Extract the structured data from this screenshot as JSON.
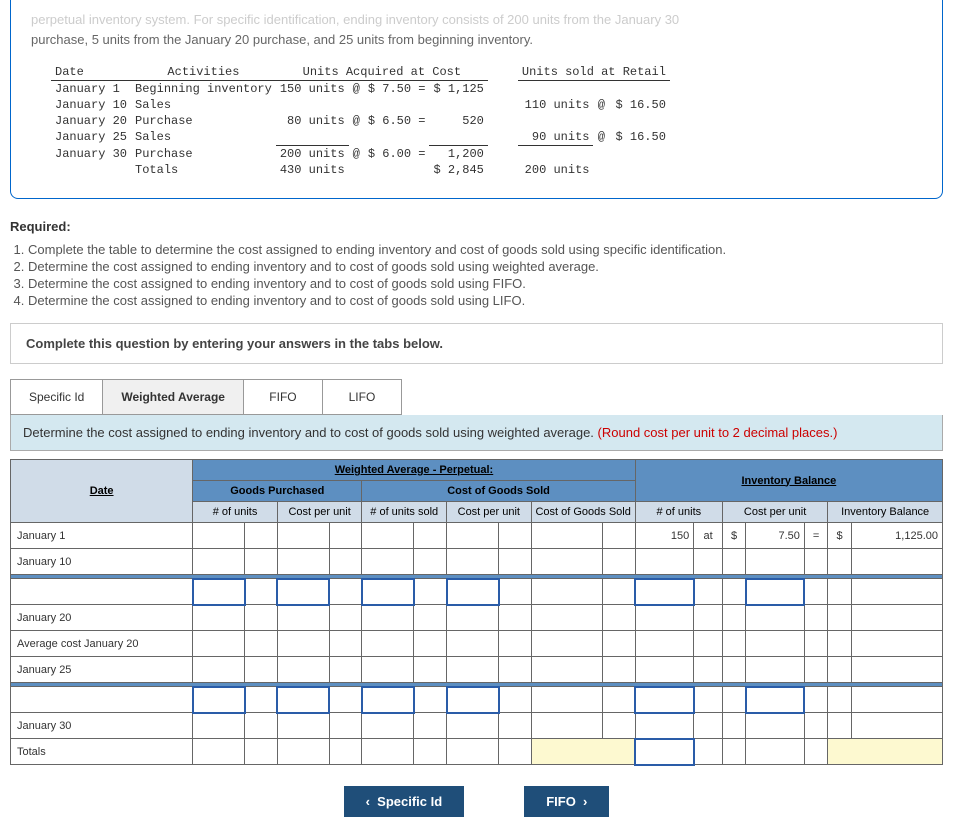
{
  "intro": {
    "faded": "perpetual inventory system. For specific identification, ending inventory consists of 200 units from the January 30",
    "line2": "purchase, 5 units from the January 20 purchase, and 25 units from beginning inventory."
  },
  "info": {
    "headers": {
      "date": "Date",
      "activities": "Activities",
      "acq": "Units Acquired at Cost",
      "sold": "Units sold at Retail"
    },
    "rows": [
      {
        "date": "January 1",
        "act": "Beginning inventory",
        "units": "150 units",
        "at": "@",
        "price": "$ 7.50 =",
        "cost": "$ 1,125",
        "sunits": "",
        "sat": "",
        "sprice": ""
      },
      {
        "date": "January 10",
        "act": "Sales",
        "units": "",
        "at": "",
        "price": "",
        "cost": "",
        "sunits": "110 units",
        "sat": "@",
        "sprice": "$ 16.50"
      },
      {
        "date": "January 20",
        "act": "Purchase",
        "units": "80 units",
        "at": "@",
        "price": "$ 6.50 =",
        "cost": "520",
        "sunits": "",
        "sat": "",
        "sprice": ""
      },
      {
        "date": "January 25",
        "act": "Sales",
        "units": "",
        "at": "",
        "price": "",
        "cost": "",
        "sunits": "90 units",
        "sat": "@",
        "sprice": "$ 16.50"
      },
      {
        "date": "January 30",
        "act": "Purchase",
        "units": "200 units",
        "at": "@",
        "price": "$ 6.00 =",
        "cost": "1,200",
        "sunits": "",
        "sat": "",
        "sprice": ""
      }
    ],
    "totals": {
      "label": "Totals",
      "units": "430 units",
      "cost": "$ 2,845",
      "sunits": "200 units"
    }
  },
  "required": {
    "heading": "Required:",
    "items": [
      "Complete the table to determine the cost assigned to ending inventory and cost of goods sold using specific identification.",
      "Determine the cost assigned to ending inventory and to cost of goods sold using weighted average.",
      "Determine the cost assigned to ending inventory and to cost of goods sold using FIFO.",
      "Determine the cost assigned to ending inventory and to cost of goods sold using LIFO."
    ],
    "instruct": "Complete this question by entering your answers in the tabs below."
  },
  "tabs": {
    "t0": "Specific Id",
    "t1": "Weighted Average",
    "t2": "FIFO",
    "t3": "LIFO"
  },
  "tabInstruction": {
    "main": "Determine the cost assigned to ending inventory and to cost of goods sold using weighted average. ",
    "red": "(Round cost per unit to 2 decimal places.)"
  },
  "worksheet": {
    "title": "Weighted Average - Perpetual:",
    "sections": {
      "gp": "Goods Purchased",
      "cogs": "Cost of Goods Sold",
      "ib": "Inventory Balance"
    },
    "cols": {
      "date": "Date",
      "gpUnits": "# of units",
      "gpCost": "Cost per unit",
      "cogsUnits": "# of units sold",
      "cogsCost": "Cost per unit",
      "cogsTotal": "Cost of Goods Sold",
      "ibUnits": "# of units",
      "ibCost": "Cost per unit",
      "ibTotal": "Inventory Balance"
    },
    "rows": [
      {
        "label": "January 1",
        "ibUnitsPre": "150",
        "ibUnitsPost": "at",
        "ibCostPre": "$",
        "ibCostVal": "7.50",
        "ibCostPost": "=",
        "ibTotalPre": "$",
        "ibTotalVal": "1,125.00"
      },
      {
        "label": "January 10"
      },
      {
        "label": "",
        "inputRow": true
      },
      {
        "label": "January 20"
      },
      {
        "label": "Average cost January 20"
      },
      {
        "label": "January 25"
      },
      {
        "label": "",
        "inputRow": true
      },
      {
        "label": "January 30"
      },
      {
        "label": "Totals",
        "totals": true
      }
    ]
  },
  "nav": {
    "prev": "Specific Id",
    "next": "FIFO"
  }
}
